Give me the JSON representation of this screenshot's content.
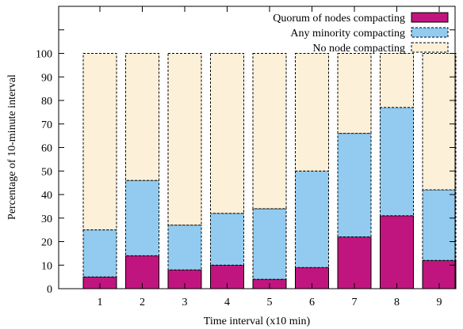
{
  "chart_data": {
    "type": "bar",
    "stacked": true,
    "categories": [
      "1",
      "2",
      "3",
      "4",
      "5",
      "6",
      "7",
      "8",
      "9"
    ],
    "series": [
      {
        "name": "Quorum of nodes compacting",
        "values": [
          5,
          14,
          8,
          10,
          4,
          9,
          22,
          31,
          12
        ],
        "color": "#c0157e",
        "border": "solid"
      },
      {
        "name": "Any minority compacting",
        "values": [
          20,
          32,
          19,
          22,
          30,
          41,
          44,
          46,
          30
        ],
        "color": "#92cbef",
        "border": "dashed"
      },
      {
        "name": "No node compacting",
        "values": [
          75,
          54,
          73,
          68,
          66,
          50,
          34,
          23,
          58
        ],
        "color": "#fdf0d8",
        "border": "dashed"
      }
    ],
    "xlabel": "Time interval (x10 min)",
    "ylabel": "Percentage of 10-minute interval",
    "ylim": [
      0,
      120
    ],
    "yticks": [
      "0",
      "10",
      "20",
      "30",
      "40",
      "50",
      "60",
      "70",
      "80",
      "90",
      "100"
    ],
    "legend_position": "top-right",
    "grid": false
  }
}
